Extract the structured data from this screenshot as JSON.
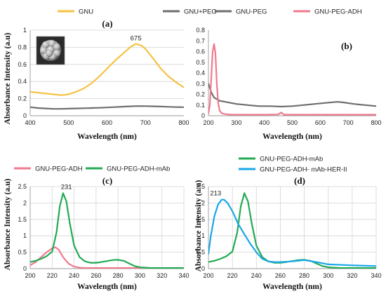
{
  "chart_data": [
    {
      "panel": "(a)",
      "type": "line",
      "xlabel": "Wavelength (nm)",
      "ylabel": "Absorbance Intensity (a.u)",
      "xlim": [
        400,
        800
      ],
      "ylim": [
        0,
        1
      ],
      "xticks": [
        400,
        500,
        600,
        700,
        800
      ],
      "yticks": [
        0,
        0.2,
        0.4,
        0.6,
        0.8,
        1
      ],
      "grid": "horizontal",
      "legend": "top",
      "annotations": [
        {
          "text": "675",
          "x": 675,
          "y": 0.88
        }
      ],
      "inset": "particle-image",
      "series": [
        {
          "name": "GNU",
          "color": "#f5c242",
          "x": [
            400,
            420,
            440,
            460,
            480,
            500,
            520,
            540,
            560,
            580,
            600,
            620,
            640,
            660,
            675,
            690,
            700,
            720,
            740,
            760,
            780,
            800
          ],
          "y": [
            0.28,
            0.27,
            0.26,
            0.25,
            0.24,
            0.25,
            0.28,
            0.32,
            0.38,
            0.46,
            0.55,
            0.64,
            0.72,
            0.8,
            0.84,
            0.82,
            0.78,
            0.67,
            0.55,
            0.46,
            0.39,
            0.33
          ]
        },
        {
          "name": "GNU+PEG",
          "color": "#6e6e6e",
          "x": [
            400,
            420,
            440,
            460,
            480,
            500,
            520,
            540,
            560,
            580,
            600,
            620,
            640,
            660,
            680,
            700,
            720,
            740,
            760,
            780,
            800
          ],
          "y": [
            0.1,
            0.09,
            0.085,
            0.08,
            0.08,
            0.083,
            0.085,
            0.088,
            0.09,
            0.093,
            0.097,
            0.101,
            0.106,
            0.11,
            0.113,
            0.112,
            0.11,
            0.107,
            0.104,
            0.101,
            0.1
          ]
        }
      ]
    },
    {
      "panel": "(b)",
      "type": "line",
      "xlabel": "Wavelength (nm)",
      "ylabel": "",
      "xlim": [
        200,
        800
      ],
      "ylim": [
        0,
        0.8
      ],
      "xticks": [
        200,
        300,
        400,
        500,
        600,
        700,
        800
      ],
      "yticks": [
        0,
        0.1,
        0.2,
        0.3,
        0.4,
        0.5,
        0.6,
        0.7,
        0.8
      ],
      "grid": "none",
      "legend": "top",
      "series": [
        {
          "name": "GNU-PEG",
          "color": "#6e6e6e",
          "x": [
            200,
            210,
            220,
            240,
            260,
            280,
            300,
            340,
            380,
            420,
            460,
            500,
            540,
            580,
            620,
            660,
            680,
            720,
            760,
            800
          ],
          "y": [
            0.3,
            0.22,
            0.17,
            0.14,
            0.13,
            0.12,
            0.11,
            0.1,
            0.09,
            0.09,
            0.085,
            0.09,
            0.1,
            0.11,
            0.12,
            0.13,
            0.125,
            0.11,
            0.1,
            0.09
          ]
        },
        {
          "name": "GNU-PEG-ADH",
          "color": "#f07a8f",
          "x": [
            200,
            205,
            210,
            215,
            220,
            225,
            230,
            235,
            240,
            245,
            250,
            260,
            280,
            300,
            400,
            450,
            460,
            470,
            500,
            600,
            700,
            800
          ],
          "y": [
            0.02,
            0.1,
            0.35,
            0.6,
            0.67,
            0.58,
            0.3,
            0.12,
            0.05,
            0.03,
            0.02,
            0.015,
            0.01,
            0.01,
            0.01,
            0.012,
            0.03,
            0.01,
            0.01,
            0.01,
            0.01,
            0.01
          ]
        }
      ]
    },
    {
      "panel": "(c)",
      "type": "line",
      "xlabel": "Wavelength (nm)",
      "ylabel": "Absorbance Intensity (a.u)",
      "xlim": [
        200,
        340
      ],
      "ylim": [
        0,
        2.5
      ],
      "xticks": [
        200,
        220,
        240,
        260,
        280,
        300,
        320,
        340
      ],
      "yticks": [
        0,
        0.5,
        1,
        1.5,
        2,
        2.5
      ],
      "grid": "both",
      "legend": "top",
      "annotations": [
        {
          "text": "231",
          "x": 233,
          "y": 2.42
        }
      ],
      "series": [
        {
          "name": "GNU-PEG-ADH",
          "color": "#f07a8f",
          "x": [
            200,
            205,
            210,
            215,
            220,
            223,
            226,
            230,
            235,
            240,
            245,
            250,
            260,
            270,
            280,
            290,
            300,
            320,
            340
          ],
          "y": [
            0.1,
            0.2,
            0.35,
            0.5,
            0.62,
            0.65,
            0.58,
            0.35,
            0.15,
            0.06,
            0.03,
            0.02,
            0.02,
            0.02,
            0.02,
            0.02,
            0.02,
            0.02,
            0.02
          ]
        },
        {
          "name": "GNU-PEG-ADH-mAb",
          "color": "#22aa55",
          "x": [
            200,
            205,
            210,
            215,
            220,
            224,
            227,
            230,
            233,
            236,
            240,
            245,
            250,
            255,
            260,
            265,
            270,
            275,
            280,
            285,
            290,
            295,
            300,
            310,
            320,
            340
          ],
          "y": [
            0.2,
            0.24,
            0.3,
            0.38,
            0.52,
            1.1,
            1.9,
            2.3,
            2.05,
            1.4,
            0.7,
            0.35,
            0.22,
            0.18,
            0.18,
            0.2,
            0.23,
            0.26,
            0.27,
            0.24,
            0.16,
            0.08,
            0.04,
            0.02,
            0.02,
            0.02
          ]
        }
      ]
    },
    {
      "panel": "(d)",
      "type": "line",
      "xlabel": "Wavelength (nm)",
      "ylabel": "Absorbance Intensity (a.u)",
      "xlim": [
        200,
        340
      ],
      "ylim": [
        0,
        2.5
      ],
      "xticks": [
        200,
        220,
        240,
        260,
        280,
        300,
        320,
        340
      ],
      "yticks": [
        0,
        0.5,
        1,
        1.5,
        2,
        2.5
      ],
      "grid": "both",
      "legend": "top",
      "annotations": [
        {
          "text": "213",
          "x": 206,
          "y": 2.23
        }
      ],
      "series": [
        {
          "name": "GNU-PEG-ADH-mAb",
          "color": "#22aa55",
          "x": [
            200,
            205,
            210,
            215,
            220,
            224,
            227,
            230,
            233,
            236,
            240,
            245,
            250,
            255,
            260,
            265,
            270,
            275,
            280,
            285,
            290,
            295,
            300,
            310,
            320,
            340
          ],
          "y": [
            0.2,
            0.24,
            0.3,
            0.38,
            0.52,
            1.1,
            1.9,
            2.3,
            2.05,
            1.4,
            0.7,
            0.35,
            0.22,
            0.18,
            0.18,
            0.2,
            0.23,
            0.26,
            0.27,
            0.24,
            0.16,
            0.08,
            0.04,
            0.02,
            0.02,
            0.02
          ]
        },
        {
          "name": "GNU-PEG-ADH- mAb-HER-II",
          "color": "#1aa7e8",
          "x": [
            200,
            202,
            205,
            208,
            211,
            213,
            216,
            220,
            225,
            230,
            235,
            240,
            245,
            250,
            255,
            260,
            270,
            280,
            290,
            300,
            320,
            340
          ],
          "y": [
            0.45,
            1.0,
            1.6,
            1.95,
            2.1,
            2.1,
            2.0,
            1.75,
            1.35,
            1.05,
            0.75,
            0.5,
            0.3,
            0.22,
            0.2,
            0.2,
            0.22,
            0.26,
            0.2,
            0.13,
            0.1,
            0.08
          ]
        }
      ]
    }
  ]
}
